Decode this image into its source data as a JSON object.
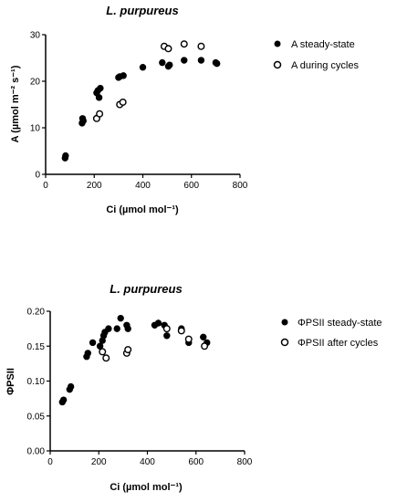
{
  "chart_data": [
    {
      "type": "scatter",
      "title": "L. purpureus",
      "xlabel": "Ci (µmol mol⁻¹)",
      "ylabel": "A (µmol m⁻² s⁻¹)",
      "xlim": [
        0,
        800
      ],
      "ylim": [
        0,
        30
      ],
      "xticks": [
        "0",
        "200",
        "400",
        "600",
        "800"
      ],
      "yticks": [
        "0",
        "10",
        "20",
        "30"
      ],
      "legend_position": "right",
      "series": [
        {
          "name": "A steady-state",
          "marker": "filled",
          "points": [
            [
              80,
              3.5
            ],
            [
              82,
              4.0
            ],
            [
              150,
              11.0
            ],
            [
              152,
              12.0
            ],
            [
              155,
              11.5
            ],
            [
              210,
              17.5
            ],
            [
              215,
              18.0
            ],
            [
              220,
              16.5
            ],
            [
              225,
              18.5
            ],
            [
              300,
              20.8
            ],
            [
              305,
              21.0
            ],
            [
              320,
              21.2
            ],
            [
              400,
              23.0
            ],
            [
              480,
              24.0
            ],
            [
              505,
              23.2
            ],
            [
              510,
              23.5
            ],
            [
              570,
              24.5
            ],
            [
              640,
              24.5
            ],
            [
              700,
              24.0
            ],
            [
              705,
              23.8
            ]
          ]
        },
        {
          "name": "A during cycles",
          "marker": "open",
          "points": [
            [
              210,
              12.0
            ],
            [
              222,
              13.0
            ],
            [
              305,
              15.0
            ],
            [
              318,
              15.5
            ],
            [
              488,
              27.5
            ],
            [
              505,
              27.0
            ],
            [
              570,
              28.0
            ],
            [
              640,
              27.5
            ]
          ]
        }
      ]
    },
    {
      "type": "scatter",
      "title": "L. purpureus",
      "xlabel": "Ci (µmol mol⁻¹)",
      "ylabel": "ΦPSII",
      "xlim": [
        0,
        800
      ],
      "ylim": [
        0,
        0.2
      ],
      "xticks": [
        "0",
        "200",
        "400",
        "600",
        "800"
      ],
      "yticks": [
        "0.00",
        "0.05",
        "0.10",
        "0.15",
        "0.20"
      ],
      "legend_position": "right",
      "series": [
        {
          "name": "ΦPSII steady-state",
          "marker": "filled",
          "points": [
            [
              50,
              0.07
            ],
            [
              55,
              0.073
            ],
            [
              80,
              0.088
            ],
            [
              85,
              0.092
            ],
            [
              150,
              0.135
            ],
            [
              155,
              0.14
            ],
            [
              175,
              0.155
            ],
            [
              205,
              0.15
            ],
            [
              215,
              0.158
            ],
            [
              220,
              0.165
            ],
            [
              225,
              0.17
            ],
            [
              240,
              0.175
            ],
            [
              275,
              0.175
            ],
            [
              290,
              0.19
            ],
            [
              315,
              0.18
            ],
            [
              320,
              0.175
            ],
            [
              430,
              0.18
            ],
            [
              445,
              0.183
            ],
            [
              470,
              0.18
            ],
            [
              480,
              0.165
            ],
            [
              540,
              0.175
            ],
            [
              570,
              0.155
            ],
            [
              630,
              0.163
            ],
            [
              645,
              0.155
            ]
          ]
        },
        {
          "name": "ΦPSII after cycles",
          "marker": "open",
          "points": [
            [
              215,
              0.142
            ],
            [
              230,
              0.133
            ],
            [
              315,
              0.14
            ],
            [
              320,
              0.145
            ],
            [
              480,
              0.175
            ],
            [
              540,
              0.172
            ],
            [
              570,
              0.16
            ],
            [
              635,
              0.15
            ]
          ]
        }
      ]
    }
  ]
}
